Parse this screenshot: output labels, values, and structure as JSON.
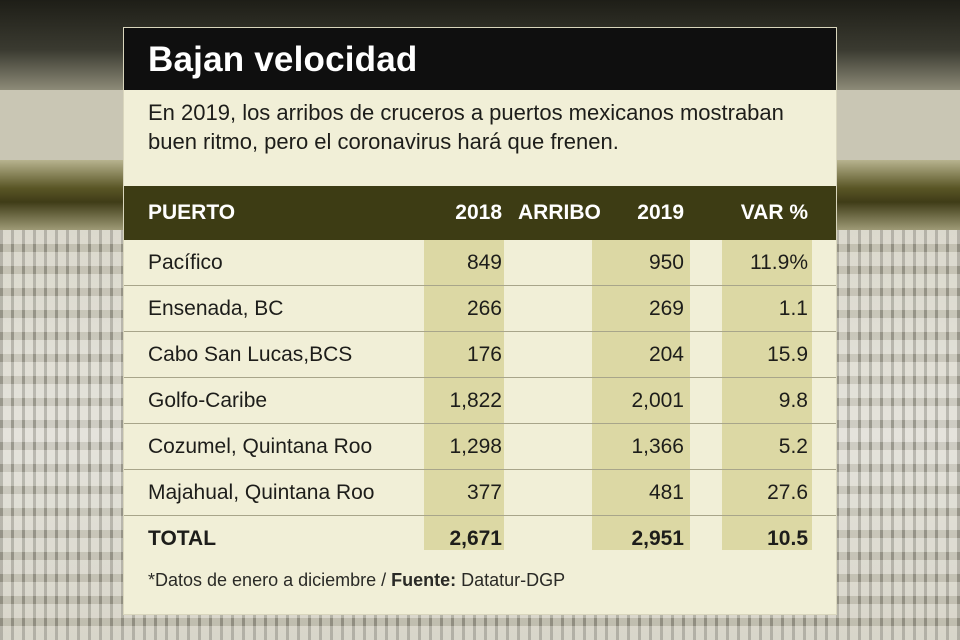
{
  "title": "Bajan velocidad",
  "subtitle": "En 2019, los arribos de cruceros a puertos mexicanos mostraban buen ritmo, pero el coronavirus hará que frenen.",
  "table": {
    "headers": {
      "puerto": "PUERTO",
      "y2018": "2018",
      "arribo": "ARRIBO",
      "y2019": "2019",
      "var": "VAR %"
    },
    "rows": [
      {
        "name": "Pacífico",
        "y2018": "849",
        "y2019": "950",
        "var": "11.9%"
      },
      {
        "name": "Ensenada, BC",
        "y2018": "266",
        "y2019": "269",
        "var": "1.1"
      },
      {
        "name": "Cabo San Lucas,BCS",
        "y2018": "176",
        "y2019": "204",
        "var": "15.9"
      },
      {
        "name": "Golfo-Caribe",
        "y2018": "1,822",
        "y2019": "2,001",
        "var": "9.8"
      },
      {
        "name": "Cozumel, Quintana Roo",
        "y2018": "1,298",
        "y2019": "1,366",
        "var": "5.2"
      },
      {
        "name": "Majahual, Quintana Roo",
        "y2018": "377",
        "y2019": "481",
        "var": "27.6"
      }
    ],
    "total": {
      "name": "TOTAL",
      "y2018": "2,671",
      "y2019": "2,951",
      "var": "10.5"
    }
  },
  "footnote": {
    "note": "*Datos de enero a diciembre / ",
    "source_label": "Fuente:",
    "source": " Datatur-DGP"
  }
}
